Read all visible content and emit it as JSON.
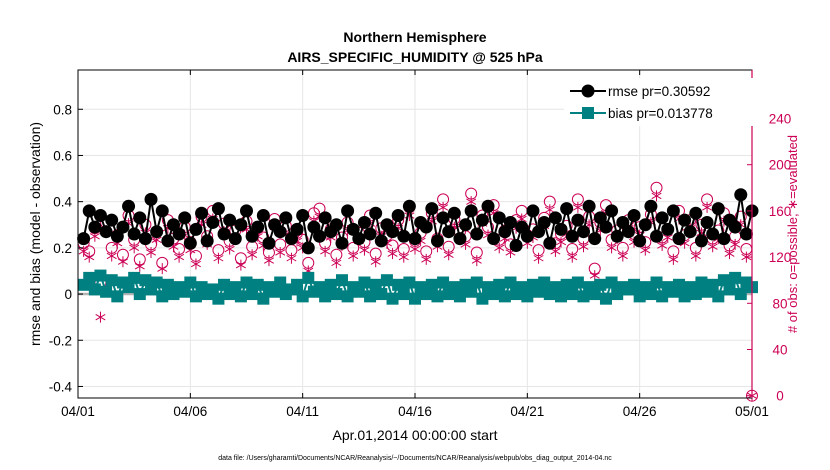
{
  "chart_data": {
    "type": "line",
    "title": "Northern Hemisphere",
    "subtitle": "AIRS_SPECIFIC_HUMIDITY @ 525 hPa",
    "xlabel": "Apr.01,2014 00:00:00 start",
    "ylabel": "rmse and bias (model - observation)",
    "y2label": "# of obs: o=possible; ∗=evaluated",
    "footnote": "data file: /Users/gharamti/Documents/NCAR/Reanalysis/~/Documents/NCAR/Reanalysis/webpub/obs_diag_output_2014-04.nc",
    "xlim": [
      0,
      30
    ],
    "ylim": [
      -0.45,
      0.97
    ],
    "y2lim": [
      -2,
      282
    ],
    "x_ticks": [
      0,
      5,
      10,
      15,
      20,
      25,
      30
    ],
    "x_tick_labels": [
      "04/01",
      "04/06",
      "04/11",
      "04/16",
      "04/21",
      "04/26",
      "05/01"
    ],
    "y_ticks": [
      -0.4,
      -0.2,
      0,
      0.2,
      0.4,
      0.6,
      0.8
    ],
    "y_tick_labels": [
      "-0.4",
      "-0.2",
      "0",
      "0.2",
      "0.4",
      "0.6",
      "0.8"
    ],
    "y2_ticks": [
      0,
      40,
      80,
      120,
      160,
      200,
      240
    ],
    "y2_tick_labels": [
      "0",
      "40",
      "80",
      "120",
      "160",
      "200",
      "240"
    ],
    "grid": true,
    "legend_position": "top-right",
    "colors": {
      "rmse": "#000000",
      "bias": "#008080",
      "obs": "#CC0055",
      "zero_line": "#b4b4b4",
      "grid": "#e6e6e6"
    },
    "series": [
      {
        "name": "rmse pr=0.30592",
        "axis": "left",
        "x": [
          0.25,
          0.5,
          0.75,
          1.0,
          1.25,
          1.5,
          1.75,
          2.0,
          2.25,
          2.5,
          2.75,
          3.0,
          3.25,
          3.5,
          3.75,
          4.0,
          4.25,
          4.5,
          4.75,
          5.0,
          5.25,
          5.5,
          5.75,
          6.0,
          6.25,
          6.5,
          6.75,
          7.0,
          7.25,
          7.5,
          7.75,
          8.0,
          8.25,
          8.5,
          8.75,
          9.0,
          9.25,
          9.5,
          9.75,
          10.0,
          10.25,
          10.5,
          10.75,
          11.0,
          11.25,
          11.5,
          11.75,
          12.0,
          12.25,
          12.5,
          12.75,
          13.0,
          13.25,
          13.5,
          13.75,
          14.0,
          14.25,
          14.5,
          14.75,
          15.0,
          15.25,
          15.5,
          15.75,
          16.0,
          16.25,
          16.5,
          16.75,
          17.0,
          17.25,
          17.5,
          17.75,
          18.0,
          18.25,
          18.5,
          18.75,
          19.0,
          19.25,
          19.5,
          19.75,
          20.0,
          20.25,
          20.5,
          20.75,
          21.0,
          21.25,
          21.5,
          21.75,
          22.0,
          22.25,
          22.5,
          22.75,
          23.0,
          23.25,
          23.5,
          23.75,
          24.0,
          24.25,
          24.5,
          24.75,
          25.0,
          25.25,
          25.5,
          25.75,
          26.0,
          26.25,
          26.5,
          26.75,
          27.0,
          27.25,
          27.5,
          27.75,
          28.0,
          28.25,
          28.5,
          28.75,
          29.0,
          29.25,
          29.5,
          29.75,
          30.0
        ],
        "values": [
          0.24,
          0.36,
          0.29,
          0.34,
          0.27,
          0.32,
          0.25,
          0.29,
          0.38,
          0.26,
          0.33,
          0.24,
          0.41,
          0.27,
          0.36,
          0.23,
          0.3,
          0.26,
          0.33,
          0.22,
          0.28,
          0.35,
          0.23,
          0.31,
          0.37,
          0.26,
          0.32,
          0.24,
          0.3,
          0.36,
          0.25,
          0.29,
          0.34,
          0.22,
          0.3,
          0.27,
          0.33,
          0.24,
          0.28,
          0.34,
          0.2,
          0.29,
          0.25,
          0.33,
          0.27,
          0.3,
          0.22,
          0.36,
          0.28,
          0.24,
          0.31,
          0.26,
          0.35,
          0.23,
          0.3,
          0.27,
          0.34,
          0.25,
          0.38,
          0.24,
          0.31,
          0.29,
          0.37,
          0.23,
          0.33,
          0.27,
          0.35,
          0.24,
          0.3,
          0.36,
          0.26,
          0.32,
          0.38,
          0.24,
          0.33,
          0.27,
          0.31,
          0.21,
          0.29,
          0.25,
          0.36,
          0.27,
          0.31,
          0.22,
          0.33,
          0.28,
          0.37,
          0.25,
          0.32,
          0.27,
          0.38,
          0.24,
          0.33,
          0.29,
          0.36,
          0.25,
          0.31,
          0.27,
          0.34,
          0.23,
          0.3,
          0.38,
          0.25,
          0.33,
          0.28,
          0.36,
          0.24,
          0.32,
          0.27,
          0.35,
          0.23,
          0.31,
          0.26,
          0.37,
          0.24,
          0.32,
          0.29,
          0.43,
          0.26,
          0.36
        ]
      },
      {
        "name": "bias pr=0.013778",
        "axis": "left",
        "x": [
          0.25,
          0.5,
          0.75,
          1.0,
          1.25,
          1.5,
          1.75,
          2.0,
          2.25,
          2.5,
          2.75,
          3.0,
          3.25,
          3.5,
          3.75,
          4.0,
          4.25,
          4.5,
          4.75,
          5.0,
          5.25,
          5.5,
          5.75,
          6.0,
          6.25,
          6.5,
          6.75,
          7.0,
          7.25,
          7.5,
          7.75,
          8.0,
          8.25,
          8.5,
          8.75,
          9.0,
          9.25,
          9.5,
          9.75,
          10.0,
          10.25,
          10.5,
          10.75,
          11.0,
          11.25,
          11.5,
          11.75,
          12.0,
          12.25,
          12.5,
          12.75,
          13.0,
          13.25,
          13.5,
          13.75,
          14.0,
          14.25,
          14.5,
          14.75,
          15.0,
          15.25,
          15.5,
          15.75,
          16.0,
          16.25,
          16.5,
          16.75,
          17.0,
          17.25,
          17.5,
          17.75,
          18.0,
          18.25,
          18.5,
          18.75,
          19.0,
          19.25,
          19.5,
          19.75,
          20.0,
          20.25,
          20.5,
          20.75,
          21.0,
          21.25,
          21.5,
          21.75,
          22.0,
          22.25,
          22.5,
          22.75,
          23.0,
          23.25,
          23.5,
          23.75,
          24.0,
          24.25,
          24.5,
          24.75,
          25.0,
          25.25,
          25.5,
          25.75,
          26.0,
          26.25,
          26.5,
          26.75,
          27.0,
          27.25,
          27.5,
          27.75,
          28.0,
          28.25,
          28.5,
          28.75,
          29.0,
          29.25,
          29.5,
          29.75,
          30.0
        ],
        "values": [
          0.04,
          0.07,
          0.02,
          0.08,
          0.01,
          0.06,
          -0.01,
          0.05,
          0.03,
          0.07,
          0.0,
          0.06,
          0.02,
          0.05,
          -0.01,
          0.04,
          0.0,
          0.03,
          0.01,
          0.05,
          -0.01,
          0.03,
          0.0,
          0.02,
          -0.02,
          0.04,
          0.0,
          0.03,
          -0.01,
          0.05,
          0.0,
          0.04,
          -0.02,
          0.03,
          0.01,
          0.05,
          0.0,
          0.02,
          0.04,
          -0.01,
          0.07,
          0.01,
          0.03,
          -0.01,
          0.04,
          0.0,
          0.06,
          -0.01,
          0.03,
          0.01,
          0.05,
          -0.01,
          0.04,
          0.0,
          0.06,
          -0.02,
          0.04,
          0.0,
          0.05,
          -0.02,
          0.03,
          0.0,
          0.04,
          -0.01,
          0.05,
          0.0,
          0.03,
          -0.01,
          0.04,
          0.01,
          0.05,
          -0.02,
          0.03,
          0.0,
          0.04,
          -0.01,
          0.05,
          0.0,
          0.03,
          -0.01,
          0.04,
          0.01,
          0.05,
          0.0,
          0.03,
          -0.01,
          0.04,
          0.0,
          0.05,
          -0.01,
          0.03,
          0.0,
          0.04,
          -0.02,
          0.05,
          0.0,
          0.03,
          0.02,
          0.04,
          -0.01,
          0.03,
          0.0,
          0.05,
          -0.01,
          0.03,
          0.01,
          0.04,
          -0.01,
          0.03,
          0.0,
          0.05,
          0.01,
          0.04,
          -0.01,
          0.06,
          0.02,
          0.07,
          0.0,
          0.05,
          0.03
        ]
      },
      {
        "name": "possible",
        "marker": "circle",
        "axis": "right",
        "x": [
          0.25,
          0.5,
          0.75,
          1.0,
          1.25,
          1.5,
          1.75,
          2.0,
          2.25,
          2.5,
          2.75,
          3.0,
          3.25,
          3.5,
          3.75,
          4.0,
          4.25,
          4.5,
          4.75,
          5.0,
          5.25,
          5.5,
          5.75,
          6.0,
          6.25,
          6.5,
          6.75,
          7.0,
          7.25,
          7.5,
          7.75,
          8.0,
          8.25,
          8.5,
          8.75,
          9.0,
          9.25,
          9.5,
          9.75,
          10.0,
          10.25,
          10.5,
          10.75,
          11.0,
          11.25,
          11.5,
          11.75,
          12.0,
          12.25,
          12.5,
          12.75,
          13.0,
          13.25,
          13.5,
          13.75,
          14.0,
          14.25,
          14.5,
          14.75,
          15.0,
          15.25,
          15.5,
          15.75,
          16.0,
          16.25,
          16.5,
          16.75,
          17.0,
          17.25,
          17.5,
          17.75,
          18.0,
          18.25,
          18.5,
          18.75,
          19.0,
          19.25,
          19.5,
          19.75,
          20.0,
          20.25,
          20.5,
          20.75,
          21.0,
          21.25,
          21.5,
          21.75,
          22.0,
          22.25,
          22.5,
          22.75,
          23.0,
          23.25,
          23.5,
          23.75,
          24.0,
          24.25,
          24.5,
          24.75,
          25.0,
          25.25,
          25.5,
          25.75,
          26.0,
          26.25,
          26.5,
          26.75,
          27.0,
          27.25,
          27.5,
          27.75,
          28.0,
          28.25,
          28.5,
          28.75,
          29.0,
          29.25,
          29.5,
          29.75,
          30.0
        ],
        "values": [
          132,
          125,
          145,
          98,
          150,
          128,
          139,
          122,
          156,
          135,
          118,
          148,
          131,
          142,
          115,
          152,
          136,
          127,
          146,
          133,
          121,
          155,
          138,
          160,
          126,
          149,
          134,
          143,
          119,
          151,
          129,
          145,
          137,
          124,
          153,
          131,
          147,
          126,
          141,
          135,
          115,
          158,
          162,
          132,
          144,
          122,
          137,
          150,
          128,
          141,
          133,
          156,
          123,
          145,
          139,
          130,
          152,
          127,
          163,
          134,
          141,
          125,
          158,
          136,
          170,
          129,
          153,
          142,
          138,
          175,
          124,
          156,
          146,
          165,
          135,
          143,
          131,
          152,
          160,
          139,
          144,
          126,
          154,
          168,
          132,
          140,
          147,
          127,
          170,
          136,
          155,
          110,
          150,
          165,
          135,
          143,
          128,
          152,
          140,
          146,
          133,
          157,
          180,
          137,
          144,
          125,
          160,
          139,
          152,
          128,
          148,
          170,
          136,
          143,
          158,
          130,
          138,
          155,
          127,
          0
        ]
      },
      {
        "name": "evaluated",
        "marker": "asterisk",
        "axis": "right",
        "x": [
          0.25,
          0.5,
          0.75,
          1.0,
          1.25,
          1.5,
          1.75,
          2.0,
          2.25,
          2.5,
          2.75,
          3.0,
          3.25,
          3.5,
          3.75,
          4.0,
          4.25,
          4.5,
          4.75,
          5.0,
          5.25,
          5.5,
          5.75,
          6.0,
          6.25,
          6.5,
          6.75,
          7.0,
          7.25,
          7.5,
          7.75,
          8.0,
          8.25,
          8.5,
          8.75,
          9.0,
          9.25,
          9.5,
          9.75,
          10.0,
          10.25,
          10.5,
          10.75,
          11.0,
          11.25,
          11.5,
          11.75,
          12.0,
          12.25,
          12.5,
          12.75,
          13.0,
          13.25,
          13.5,
          13.75,
          14.0,
          14.25,
          14.5,
          14.75,
          15.0,
          15.25,
          15.5,
          15.75,
          16.0,
          16.25,
          16.5,
          16.75,
          17.0,
          17.25,
          17.5,
          17.75,
          18.0,
          18.25,
          18.5,
          18.75,
          19.0,
          19.25,
          19.5,
          19.75,
          20.0,
          20.25,
          20.5,
          20.75,
          21.0,
          21.25,
          21.5,
          21.75,
          22.0,
          22.25,
          22.5,
          22.75,
          23.0,
          23.25,
          23.5,
          23.75,
          24.0,
          24.25,
          24.5,
          24.75,
          25.0,
          25.25,
          25.5,
          25.75,
          26.0,
          26.25,
          26.5,
          26.75,
          27.0,
          27.25,
          27.5,
          27.75,
          28.0,
          28.25,
          28.5,
          28.75,
          29.0,
          29.25,
          29.5,
          29.75,
          30.0
        ],
        "values": [
          125,
          120,
          138,
          68,
          143,
          121,
          132,
          116,
          149,
          128,
          112,
          141,
          124,
          135,
          110,
          145,
          129,
          120,
          139,
          126,
          114,
          148,
          131,
          153,
          119,
          142,
          127,
          136,
          113,
          144,
          122,
          138,
          130,
          117,
          146,
          124,
          140,
          119,
          134,
          128,
          108,
          151,
          155,
          125,
          137,
          115,
          130,
          143,
          121,
          134,
          126,
          149,
          116,
          138,
          132,
          123,
          145,
          120,
          156,
          127,
          134,
          118,
          151,
          129,
          163,
          122,
          146,
          135,
          131,
          168,
          117,
          149,
          139,
          158,
          128,
          136,
          124,
          145,
          153,
          132,
          137,
          119,
          147,
          161,
          125,
          133,
          140,
          120,
          163,
          129,
          148,
          104,
          143,
          158,
          128,
          136,
          121,
          145,
          133,
          139,
          126,
          150,
          173,
          130,
          137,
          118,
          153,
          132,
          145,
          121,
          141,
          163,
          129,
          136,
          151,
          123,
          131,
          148,
          120,
          0
        ]
      }
    ]
  }
}
